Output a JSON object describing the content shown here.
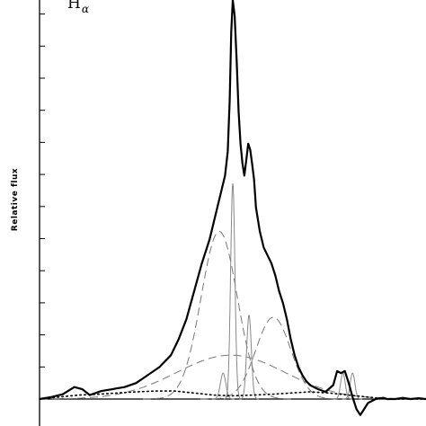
{
  "chart_data": {
    "type": "line",
    "panel_label": "H",
    "panel_label_sub": "α",
    "xlabel": "",
    "ylabel": "Relative flux",
    "xlim": [
      0,
      100
    ],
    "ylim": [
      -0.07,
      1.0
    ],
    "series": [
      {
        "role": "observed",
        "style": "thick-solid",
        "color": "#000000",
        "x": [
          0,
          3,
          6,
          9,
          11,
          13,
          16,
          19,
          22,
          25,
          28,
          31,
          34,
          36,
          38,
          40,
          42,
          44,
          45,
          46,
          47,
          48,
          48.7,
          49.2,
          49.6,
          50,
          50.5,
          51,
          51.5,
          52,
          52.5,
          53,
          53.5,
          54,
          54.5,
          55,
          55.5,
          56,
          57,
          58,
          59,
          60,
          61,
          62,
          63,
          64,
          65,
          66,
          67,
          68,
          69,
          70,
          72,
          74,
          76,
          77,
          78,
          79,
          80,
          81,
          82,
          83,
          84,
          85,
          86,
          87,
          88,
          89,
          90,
          92,
          94,
          96,
          98,
          100
        ],
        "y": [
          0,
          0.005,
          0.012,
          0.03,
          0.025,
          0.01,
          0.02,
          0.025,
          0.03,
          0.04,
          0.06,
          0.08,
          0.11,
          0.15,
          0.2,
          0.27,
          0.34,
          0.4,
          0.44,
          0.48,
          0.52,
          0.56,
          0.62,
          0.75,
          0.92,
          1.0,
          0.96,
          0.85,
          0.72,
          0.64,
          0.59,
          0.56,
          0.6,
          0.64,
          0.625,
          0.59,
          0.55,
          0.48,
          0.42,
          0.38,
          0.36,
          0.34,
          0.31,
          0.27,
          0.24,
          0.2,
          0.15,
          0.11,
          0.08,
          0.06,
          0.045,
          0.035,
          0.025,
          0.018,
          0.035,
          0.07,
          0.065,
          0.07,
          0.04,
          0.005,
          -0.025,
          -0.04,
          -0.025,
          -0.01,
          -0.005,
          0.0,
          0.002,
          0.003,
          0.0,
          0.0,
          0.003,
          0.0,
          0.002,
          0.0
        ]
      },
      {
        "role": "component-broad-blue",
        "style": "dashed",
        "color": "#777777",
        "shape": "gaussian",
        "center": 46.5,
        "sigma": 4.7,
        "amplitude": 0.42
      },
      {
        "role": "component-broad-red",
        "style": "dashed",
        "color": "#777777",
        "shape": "gaussian",
        "center": 60.5,
        "sigma": 4.5,
        "amplitude": 0.205
      },
      {
        "role": "component-very-broad",
        "style": "dashed",
        "color": "#777777",
        "shape": "gaussian",
        "center": 49.5,
        "sigma": 14.0,
        "amplitude": 0.11
      },
      {
        "role": "component-narrow",
        "style": "thin-solid",
        "color": "#888888",
        "shape": "gaussian",
        "center": 50,
        "sigma": 0.55,
        "amplitude": 0.54
      },
      {
        "role": "component-narrow",
        "style": "thin-solid",
        "color": "#888888",
        "shape": "gaussian",
        "center": 54.2,
        "sigma": 0.6,
        "amplitude": 0.21
      },
      {
        "role": "component-narrow",
        "style": "thin-solid",
        "color": "#888888",
        "shape": "gaussian",
        "center": 47.5,
        "sigma": 0.7,
        "amplitude": 0.065
      },
      {
        "role": "component-narrow",
        "style": "thin-solid",
        "color": "#888888",
        "shape": "gaussian",
        "center": 78.5,
        "sigma": 0.6,
        "amplitude": 0.065
      },
      {
        "role": "component-narrow",
        "style": "thin-solid",
        "color": "#888888",
        "shape": "gaussian",
        "center": 81,
        "sigma": 0.6,
        "amplitude": 0.065
      },
      {
        "role": "residual",
        "style": "dotted",
        "color": "#000000",
        "x": [
          0,
          5,
          10,
          15,
          20,
          25,
          30,
          35,
          40,
          45,
          50,
          55,
          60,
          65,
          70,
          75,
          80,
          85,
          90,
          95,
          100
        ],
        "y": [
          0.0,
          0.005,
          0.01,
          0.012,
          0.015,
          0.018,
          0.02,
          0.02,
          0.015,
          0.01,
          0.008,
          0.01,
          0.012,
          0.015,
          0.018,
          0.015,
          0.01,
          0.005,
          0.0,
          0.0,
          0.0
        ]
      }
    ],
    "grid": false,
    "legend": "none"
  }
}
